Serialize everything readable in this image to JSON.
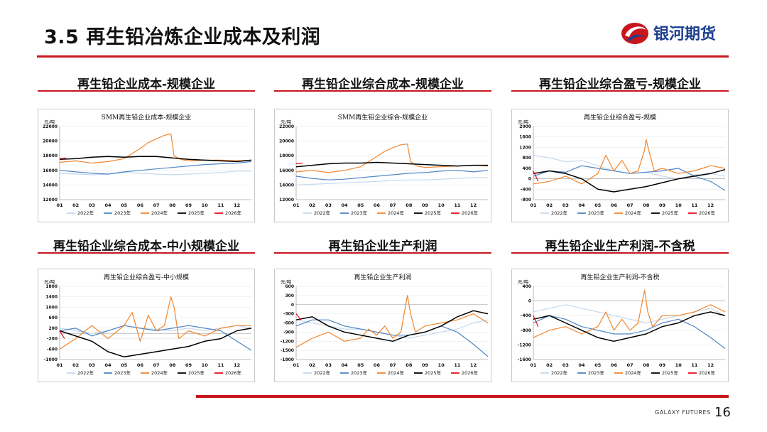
{
  "slide": {
    "title": "3.5  再生铅冶炼企业成本及利润",
    "brand": "银河期货",
    "footer_brand": "GALAXY FUTURES",
    "page_number": "16"
  },
  "colors": {
    "accent": "#c8161d",
    "series": [
      "#c5d9ee",
      "#4f86c6",
      "#f0852d",
      "#000000",
      "#e8101b"
    ]
  },
  "chart_data": [
    {
      "type": "line",
      "heading": "再生铅企业成本-规模企业",
      "title": "SMM再生铅企业成本-规模企业",
      "ylabel": "元/吨",
      "ylim": [
        12000,
        22000
      ],
      "yticks": [
        "12000",
        "14000",
        "16000",
        "18000",
        "20000",
        "22000"
      ],
      "xlim": [
        1,
        12.9
      ],
      "xticks": [
        "01",
        "02",
        "03",
        "04",
        "05",
        "06",
        "07",
        "08",
        "09",
        "10",
        "11",
        "12"
      ],
      "legend_position": "bottom",
      "series": [
        {
          "name": "2022年",
          "x": [
            1,
            2,
            3,
            4,
            5,
            6,
            7,
            8,
            9,
            10,
            11,
            12,
            12.9
          ],
          "y": [
            15600,
            15500,
            15400,
            15500,
            15700,
            15600,
            15500,
            15400,
            15500,
            15600,
            15700,
            15900,
            15900
          ]
        },
        {
          "name": "2023年",
          "x": [
            1,
            2,
            3,
            4,
            5,
            6,
            7,
            8,
            9,
            10,
            11,
            12,
            12.9
          ],
          "y": [
            16000,
            15800,
            15600,
            15500,
            15800,
            16000,
            16200,
            16400,
            16600,
            16800,
            16900,
            17000,
            17200
          ]
        },
        {
          "name": "2024年",
          "x": [
            1,
            2,
            3,
            4,
            5,
            5.5,
            6,
            6.5,
            7,
            7.5,
            7.9,
            8.1,
            8.5,
            9,
            10,
            11,
            12,
            12.9
          ],
          "y": [
            17100,
            17300,
            17000,
            17200,
            17600,
            18300,
            19000,
            19800,
            20300,
            20800,
            21000,
            18000,
            17500,
            17300,
            17400,
            17400,
            17300,
            17400
          ]
        },
        {
          "name": "2025年",
          "x": [
            1,
            2,
            3,
            4,
            5,
            6,
            7,
            8,
            9,
            10,
            11,
            12,
            12.9
          ],
          "y": [
            17500,
            17600,
            17800,
            17900,
            17800,
            17900,
            17900,
            17700,
            17500,
            17400,
            17300,
            17200,
            17400
          ]
        },
        {
          "name": "2026年",
          "x": [
            1,
            1.4
          ],
          "y": [
            17600,
            17700
          ]
        }
      ]
    },
    {
      "type": "line",
      "heading": "再生铅企业综合成本-规模企业",
      "title": "SMM再生铅企业综合-规模企业",
      "ylabel": "元/吨",
      "ylim": [
        12000,
        22000
      ],
      "yticks": [
        "12000",
        "14000",
        "16000",
        "18000",
        "20000",
        "22000"
      ],
      "xlim": [
        1,
        12.9
      ],
      "xticks": [
        "01",
        "02",
        "03",
        "04",
        "05",
        "06",
        "07",
        "08",
        "09",
        "10",
        "11",
        "12"
      ],
      "legend_position": "bottom",
      "series": [
        {
          "name": "2022年",
          "x": [
            1,
            2,
            3,
            4,
            5,
            6,
            7,
            8,
            9,
            10,
            11,
            12,
            12.9
          ],
          "y": [
            14000,
            14100,
            14200,
            14300,
            14400,
            14500,
            14600,
            14700,
            14700,
            14800,
            14900,
            15000,
            15000
          ]
        },
        {
          "name": "2023年",
          "x": [
            1,
            2,
            3,
            4,
            5,
            6,
            7,
            8,
            9,
            10,
            11,
            12,
            12.9
          ],
          "y": [
            15200,
            14900,
            14700,
            14800,
            15000,
            15200,
            15400,
            15600,
            15700,
            15900,
            16000,
            15800,
            16000
          ]
        },
        {
          "name": "2024年",
          "x": [
            1,
            2,
            3,
            4,
            5,
            5.5,
            6,
            6.5,
            7,
            7.5,
            7.9,
            8.1,
            8.5,
            9,
            10,
            11,
            12,
            12.9
          ],
          "y": [
            15800,
            16000,
            15700,
            16000,
            16500,
            17200,
            17900,
            18600,
            19100,
            19500,
            19600,
            17200,
            16600,
            16400,
            16500,
            16600,
            16700,
            16600
          ]
        },
        {
          "name": "2025年",
          "x": [
            1,
            2,
            3,
            4,
            5,
            6,
            7,
            8,
            9,
            10,
            11,
            12,
            12.9
          ],
          "y": [
            16500,
            16700,
            16900,
            17000,
            17000,
            17100,
            17000,
            16900,
            16800,
            16700,
            16600,
            16700,
            16700
          ]
        },
        {
          "name": "2026年",
          "x": [
            1,
            1.4
          ],
          "y": [
            16900,
            17000
          ]
        }
      ]
    },
    {
      "type": "line",
      "heading": "再生铅企业综合盈亏-规模企业",
      "title": "再生铅企业综合盈亏-规模",
      "ylabel": "元/吨",
      "ylim": [
        -800,
        2000
      ],
      "yticks": [
        "-800",
        "-400",
        "0",
        "400",
        "800",
        "1200",
        "1600",
        "2000"
      ],
      "xlim": [
        1,
        12.9
      ],
      "xticks": [
        "01",
        "02",
        "03",
        "04",
        "05",
        "06",
        "07",
        "08",
        "09",
        "10",
        "11",
        "12"
      ],
      "legend_position": "bottom",
      "series": [
        {
          "name": "2022年",
          "x": [
            1,
            2,
            3,
            4,
            5,
            6,
            7,
            8,
            9,
            10,
            11,
            12,
            12.9
          ],
          "y": [
            900,
            800,
            650,
            700,
            500,
            300,
            200,
            250,
            100,
            0,
            150,
            200,
            100
          ]
        },
        {
          "name": "2023年",
          "x": [
            1,
            2,
            3,
            4,
            5,
            6,
            7,
            8,
            9,
            10,
            11,
            12,
            12.9
          ],
          "y": [
            100,
            300,
            250,
            500,
            400,
            300,
            200,
            250,
            300,
            400,
            100,
            -100,
            -450
          ]
        },
        {
          "name": "2024年",
          "x": [
            1,
            2,
            3,
            4,
            5,
            5.5,
            6,
            6.5,
            7,
            7.5,
            7.9,
            8,
            8.2,
            8.5,
            9,
            10,
            11,
            12,
            12.9
          ],
          "y": [
            -200,
            -100,
            100,
            -200,
            200,
            900,
            300,
            700,
            200,
            300,
            1100,
            1500,
            1000,
            300,
            400,
            200,
            300,
            500,
            400
          ]
        },
        {
          "name": "2025年",
          "x": [
            1,
            2,
            3,
            4,
            5,
            6,
            7,
            8,
            9,
            10,
            11,
            12,
            12.9
          ],
          "y": [
            200,
            300,
            200,
            0,
            -400,
            -500,
            -400,
            -300,
            -150,
            0,
            100,
            200,
            350
          ]
        },
        {
          "name": "2026年",
          "x": [
            1,
            1.3
          ],
          "y": [
            300,
            -100
          ]
        }
      ]
    },
    {
      "type": "line",
      "heading": "再生铅企业综合成本-中小规模企业",
      "title": "再生铅企业综合盈亏-中小规模",
      "ylabel": "元/吨",
      "ylim": [
        -1000,
        1800
      ],
      "yticks": [
        "-1000",
        "-600",
        "-200",
        "200",
        "600",
        "1000",
        "1400",
        "1800"
      ],
      "xlim": [
        1,
        12.9
      ],
      "xticks": [
        "01",
        "02",
        "03",
        "04",
        "05",
        "06",
        "07",
        "08",
        "09",
        "10",
        "11",
        "12"
      ],
      "legend_position": "bottom",
      "series": [
        {
          "name": "2022年",
          "x": [
            1,
            2,
            3,
            4,
            5,
            6,
            7,
            8,
            9,
            10,
            11,
            12,
            12.9
          ],
          "y": [
            200,
            100,
            0,
            100,
            300,
            200,
            150,
            100,
            200,
            100,
            200,
            300,
            200
          ]
        },
        {
          "name": "2023年",
          "x": [
            1,
            2,
            3,
            4,
            5,
            6,
            7,
            8,
            9,
            10,
            11,
            12,
            12.9
          ],
          "y": [
            100,
            200,
            -100,
            100,
            300,
            200,
            100,
            200,
            300,
            200,
            100,
            -300,
            -650
          ]
        },
        {
          "name": "2024年",
          "x": [
            1,
            2,
            3,
            4,
            5,
            5.5,
            6,
            6.5,
            7,
            7.5,
            7.9,
            8.1,
            8.4,
            9,
            10,
            11,
            12,
            12.9
          ],
          "y": [
            -600,
            -200,
            300,
            -200,
            300,
            800,
            -300,
            700,
            100,
            300,
            1400,
            1000,
            -200,
            100,
            -100,
            200,
            300,
            300
          ]
        },
        {
          "name": "2025年",
          "x": [
            1,
            2,
            3,
            4,
            5,
            6,
            7,
            8,
            9,
            10,
            11,
            12,
            12.9
          ],
          "y": [
            100,
            -100,
            -300,
            -700,
            -900,
            -800,
            -700,
            -600,
            -500,
            -300,
            -200,
            100,
            200
          ]
        },
        {
          "name": "2026年",
          "x": [
            1,
            1.3
          ],
          "y": [
            100,
            -200
          ]
        }
      ]
    },
    {
      "type": "line",
      "heading": "再生铅企业生产利润",
      "title": "再生铅企业生产利润",
      "ylabel": "元/吨",
      "ylim": [
        -1800,
        600
      ],
      "yticks": [
        "-1800",
        "-1500",
        "-1200",
        "-900",
        "-600",
        "-300",
        "0",
        "300",
        "600"
      ],
      "xlim": [
        1,
        12.9
      ],
      "xticks": [
        "01",
        "02",
        "03",
        "04",
        "05",
        "06",
        "07",
        "08",
        "09",
        "10",
        "11",
        "12"
      ],
      "legend_position": "bottom",
      "series": [
        {
          "name": "2022年",
          "x": [
            1,
            2,
            3,
            4,
            5,
            6,
            7,
            8,
            9,
            10,
            11,
            12,
            12.9
          ],
          "y": [
            -500,
            -600,
            -700,
            -800,
            -800,
            -900,
            -1000,
            -1100,
            -1000,
            -900,
            -800,
            -600,
            -500
          ]
        },
        {
          "name": "2023年",
          "x": [
            1,
            2,
            3,
            4,
            5,
            6,
            7,
            8,
            9,
            10,
            11,
            12,
            12.9
          ],
          "y": [
            -700,
            -500,
            -500,
            -700,
            -800,
            -900,
            -1000,
            -1000,
            -900,
            -700,
            -900,
            -1300,
            -1700
          ]
        },
        {
          "name": "2024年",
          "x": [
            1,
            2,
            3,
            4,
            5,
            5.5,
            6,
            6.5,
            7,
            7.5,
            7.9,
            8.1,
            8.4,
            9,
            10,
            11,
            12,
            12.9
          ],
          "y": [
            -1400,
            -1100,
            -900,
            -1200,
            -1100,
            -800,
            -1000,
            -700,
            -1100,
            -900,
            300,
            -300,
            -900,
            -700,
            -600,
            -500,
            -300,
            -600
          ]
        },
        {
          "name": "2025年",
          "x": [
            1,
            2,
            3,
            4,
            5,
            6,
            7,
            8,
            9,
            10,
            11,
            12,
            12.9
          ],
          "y": [
            -500,
            -400,
            -700,
            -900,
            -1000,
            -1100,
            -1200,
            -1000,
            -900,
            -700,
            -400,
            -200,
            -300
          ]
        },
        {
          "name": "2026年",
          "x": [
            1,
            1.3
          ],
          "y": [
            -300,
            -500
          ]
        }
      ]
    },
    {
      "type": "line",
      "heading": "再生铅企业生产利润-不含税",
      "title": "再生铅企业生产利润-不含税",
      "ylabel": "元/吨",
      "ylim": [
        -1600,
        400
      ],
      "yticks": [
        "-1600",
        "-1200",
        "-800",
        "-400",
        "0",
        "400"
      ],
      "xlim": [
        1,
        12.9
      ],
      "xticks": [
        "01",
        "02",
        "03",
        "04",
        "05",
        "06",
        "07",
        "08",
        "09",
        "10",
        "11",
        "12"
      ],
      "legend_position": "bottom",
      "series": [
        {
          "name": "2022年",
          "x": [
            1,
            2,
            3,
            4,
            5,
            6,
            7,
            8,
            9,
            10,
            11,
            12,
            12.9
          ],
          "y": [
            -300,
            -200,
            -100,
            -200,
            -300,
            -400,
            -500,
            -600,
            -500,
            -400,
            -300,
            -200,
            -400
          ]
        },
        {
          "name": "2023年",
          "x": [
            1,
            2,
            3,
            4,
            5,
            6,
            7,
            8,
            9,
            10,
            11,
            12,
            12.9
          ],
          "y": [
            -600,
            -400,
            -500,
            -700,
            -800,
            -900,
            -900,
            -800,
            -600,
            -500,
            -700,
            -1000,
            -1300
          ]
        },
        {
          "name": "2024年",
          "x": [
            1,
            2,
            3,
            4,
            5,
            5.5,
            6,
            6.5,
            7,
            7.5,
            7.9,
            8.1,
            8.4,
            9,
            10,
            11,
            12,
            12.9
          ],
          "y": [
            -1000,
            -800,
            -700,
            -900,
            -700,
            -300,
            -800,
            -500,
            -800,
            -600,
            300,
            -300,
            -700,
            -400,
            -400,
            -300,
            -100,
            -300
          ]
        },
        {
          "name": "2025年",
          "x": [
            1,
            2,
            3,
            4,
            5,
            6,
            7,
            8,
            9,
            10,
            11,
            12,
            12.9
          ],
          "y": [
            -500,
            -400,
            -600,
            -800,
            -1000,
            -1100,
            -1000,
            -900,
            -700,
            -600,
            -400,
            -300,
            -400
          ]
        },
        {
          "name": "2026年",
          "x": [
            1,
            1.3
          ],
          "y": [
            -400,
            -700
          ]
        }
      ]
    }
  ]
}
